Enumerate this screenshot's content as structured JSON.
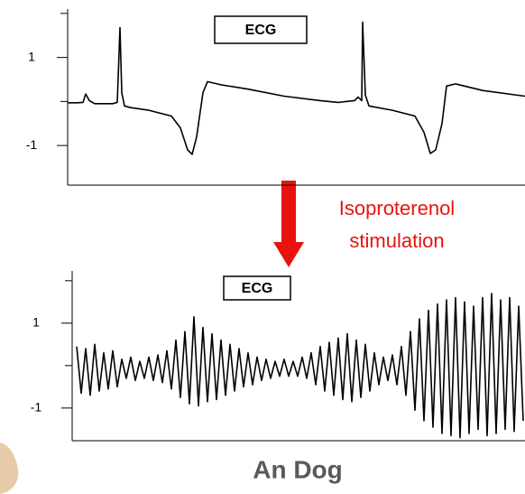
{
  "chart_data": [
    {
      "type": "line",
      "annotation": "ECG",
      "x": [
        0,
        10,
        17,
        20,
        24,
        30,
        50,
        55,
        58,
        60,
        63,
        70,
        90,
        115,
        125,
        133,
        138,
        143,
        150,
        155,
        170,
        200,
        240,
        280,
        300,
        318,
        322,
        326,
        327,
        330,
        334,
        360,
        385,
        395,
        402,
        408,
        415,
        420,
        430,
        460,
        507
      ],
      "values": [
        -0.03,
        -0.03,
        -0.02,
        0.17,
        0.02,
        -0.05,
        -0.05,
        -0.02,
        1.68,
        0.2,
        -0.1,
        -0.14,
        -0.2,
        -0.33,
        -0.6,
        -1.1,
        -1.2,
        -0.8,
        0.2,
        0.45,
        0.38,
        0.28,
        0.12,
        0.02,
        -0.02,
        0.02,
        0.1,
        0.02,
        1.8,
        0.15,
        -0.1,
        -0.2,
        -0.33,
        -0.7,
        -1.18,
        -1.1,
        -0.5,
        0.35,
        0.4,
        0.25,
        0.12
      ],
      "color": "#000000",
      "xlim": [
        0,
        507
      ],
      "ylim": [
        -1.9,
        2.1
      ],
      "yticks": [
        1,
        -1
      ],
      "minor_yticks": [
        0,
        2
      ]
    },
    {
      "type": "line",
      "annotation": "ECG",
      "x": [
        0,
        5,
        10,
        15,
        20,
        25,
        30,
        35,
        40,
        45,
        50,
        55,
        60,
        65,
        70,
        75,
        80,
        85,
        90,
        95,
        100,
        105,
        110,
        115,
        120,
        125,
        130,
        135,
        140,
        145,
        150,
        155,
        160,
        165,
        170,
        175,
        180,
        185,
        190,
        195,
        200,
        205,
        210,
        215,
        220,
        225,
        230,
        235,
        240,
        245,
        250,
        255,
        260,
        265,
        270,
        275,
        280,
        285,
        290,
        295,
        300,
        305,
        310,
        315,
        320,
        325,
        330,
        335,
        340,
        345,
        350,
        355,
        360,
        365,
        370,
        375,
        380,
        385,
        390,
        395,
        400,
        405,
        410,
        415,
        420,
        425,
        430,
        435,
        440,
        445,
        450,
        455,
        460,
        465,
        470,
        475,
        480,
        485,
        490,
        495
      ],
      "values": [
        0.45,
        -0.65,
        0.4,
        -0.7,
        0.5,
        -0.6,
        0.3,
        -0.55,
        0.35,
        -0.5,
        0.15,
        -0.3,
        0.2,
        -0.35,
        0.1,
        -0.3,
        0.2,
        -0.35,
        0.25,
        -0.4,
        0.35,
        -0.55,
        0.6,
        -0.75,
        0.8,
        -0.9,
        1.15,
        -0.95,
        0.9,
        -0.85,
        0.75,
        -0.8,
        0.6,
        -0.7,
        0.5,
        -0.6,
        0.4,
        -0.5,
        0.3,
        -0.45,
        0.2,
        -0.35,
        0.15,
        -0.3,
        0.1,
        -0.25,
        0.15,
        -0.25,
        0.1,
        -0.25,
        0.2,
        -0.3,
        0.3,
        -0.45,
        0.45,
        -0.6,
        0.55,
        -0.7,
        0.65,
        -0.8,
        0.75,
        -0.85,
        0.6,
        -0.75,
        0.5,
        -0.6,
        0.3,
        -0.45,
        0.2,
        -0.35,
        0.25,
        -0.45,
        0.45,
        -0.7,
        0.8,
        -1.05,
        1.1,
        -1.3,
        1.3,
        -1.45,
        1.45,
        -1.6,
        1.55,
        -1.65,
        1.6,
        -1.7,
        1.5,
        -1.6,
        1.4,
        -1.5,
        1.6,
        -1.65,
        1.7,
        -1.6,
        1.55,
        -1.5,
        1.6,
        -1.55,
        1.4,
        -1.3
      ],
      "color": "#000000",
      "xlim": [
        0,
        502
      ],
      "ylim": [
        -1.77,
        2.23
      ],
      "yticks": [
        1,
        -1
      ],
      "minor_yticks": [
        0,
        2
      ]
    }
  ],
  "arrow_label": [
    "Isoproterenol",
    "stimulation"
  ],
  "caption": "An Dog"
}
